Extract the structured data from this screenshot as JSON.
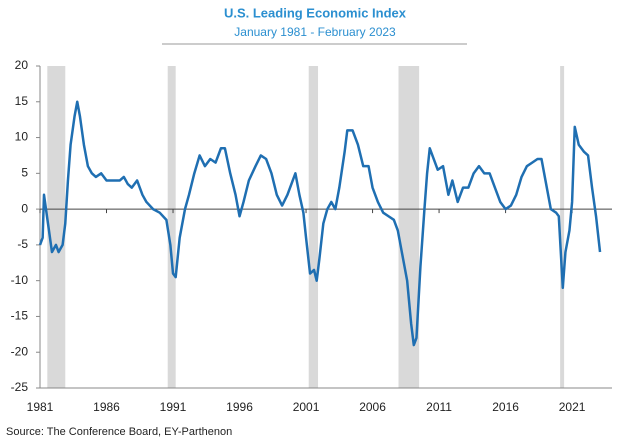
{
  "chart_data": {
    "type": "line",
    "title": "U.S. Leading Economic Index",
    "subtitle": "January 1981 - February 2023",
    "source": "Source: The Conference Board, EY-Parthenon",
    "xlim": [
      1981,
      2024
    ],
    "xticks": [
      1981,
      1986,
      1991,
      1996,
      2001,
      2006,
      2011,
      2016,
      2021
    ],
    "ylim": [
      -25,
      20
    ],
    "yticks": [
      -25,
      -20,
      -15,
      -10,
      -5,
      0,
      5,
      10,
      15,
      20
    ],
    "recession_color": "#d9d9d9",
    "recessions": [
      [
        1981.55,
        1982.9
      ],
      [
        1990.6,
        1991.2
      ],
      [
        2001.2,
        2001.9
      ],
      [
        2007.95,
        2009.5
      ],
      [
        2020.1,
        2020.4
      ]
    ],
    "series": [
      {
        "name": "Leading Economic Index",
        "color": "#1f6fb2",
        "x": [
          1981.0,
          1981.2,
          1981.3,
          1981.6,
          1981.9,
          1982.2,
          1982.4,
          1982.7,
          1982.9,
          1983.1,
          1983.3,
          1983.6,
          1983.8,
          1984.0,
          1984.3,
          1984.6,
          1984.9,
          1985.2,
          1985.6,
          1986.0,
          1986.5,
          1987.0,
          1987.3,
          1987.6,
          1987.9,
          1988.3,
          1988.7,
          1989.0,
          1989.5,
          1990.0,
          1990.5,
          1990.8,
          1991.0,
          1991.2,
          1991.5,
          1991.9,
          1992.2,
          1992.6,
          1993.0,
          1993.4,
          1993.8,
          1994.2,
          1994.6,
          1994.9,
          1995.3,
          1995.7,
          1996.0,
          1996.3,
          1996.7,
          1997.2,
          1997.6,
          1998.0,
          1998.4,
          1998.8,
          1999.2,
          1999.6,
          2000.0,
          2000.2,
          2000.5,
          2000.8,
          2001.0,
          2001.3,
          2001.6,
          2001.8,
          2002.0,
          2002.3,
          2002.6,
          2002.9,
          2003.2,
          2003.5,
          2003.9,
          2004.1,
          2004.5,
          2004.9,
          2005.3,
          2005.7,
          2006.0,
          2006.4,
          2006.8,
          2007.2,
          2007.6,
          2007.9,
          2008.2,
          2008.6,
          2008.9,
          2009.1,
          2009.3,
          2009.6,
          2009.9,
          2010.1,
          2010.3,
          2010.6,
          2010.9,
          2011.3,
          2011.7,
          2012.0,
          2012.4,
          2012.8,
          2013.2,
          2013.6,
          2014.0,
          2014.4,
          2014.8,
          2015.2,
          2015.6,
          2016.0,
          2016.4,
          2016.8,
          2017.2,
          2017.6,
          2018.0,
          2018.4,
          2018.7,
          2019.0,
          2019.4,
          2019.8,
          2020.0,
          2020.3,
          2020.5,
          2020.8,
          2021.0,
          2021.2,
          2021.5,
          2021.9,
          2022.2,
          2022.5,
          2022.8,
          2023.1
        ],
        "values": [
          -5,
          -4,
          2,
          -2,
          -6,
          -5,
          -6,
          -5,
          -2,
          4,
          9,
          13,
          15,
          13,
          9,
          6,
          5,
          4.5,
          5,
          4,
          4,
          4,
          4.5,
          3.5,
          3,
          4,
          2,
          1,
          0,
          -0.5,
          -1.5,
          -5,
          -9,
          -9.5,
          -4,
          0,
          2,
          5,
          7.5,
          6,
          7,
          6.5,
          8.5,
          8.5,
          5,
          2,
          -1,
          1,
          4,
          6,
          7.5,
          7,
          5,
          2,
          0.5,
          2,
          4,
          5,
          2,
          -0.5,
          -4,
          -9,
          -8.5,
          -10,
          -7,
          -2,
          0,
          1,
          0,
          3,
          8,
          11,
          11,
          9,
          6,
          6,
          3,
          1,
          -0.5,
          -1,
          -1.5,
          -3,
          -6,
          -10,
          -16,
          -19,
          -18,
          -8,
          0,
          5,
          8.5,
          7,
          5.5,
          6,
          2,
          4,
          1,
          3,
          3,
          5,
          6,
          5,
          5,
          3,
          1,
          0,
          0.5,
          2,
          4.5,
          6,
          6.5,
          7,
          7,
          4,
          0,
          -0.5,
          -1,
          -11,
          -6,
          -3,
          1,
          11.5,
          9,
          8,
          7.5,
          3,
          -1,
          -6
        ]
      }
    ]
  }
}
